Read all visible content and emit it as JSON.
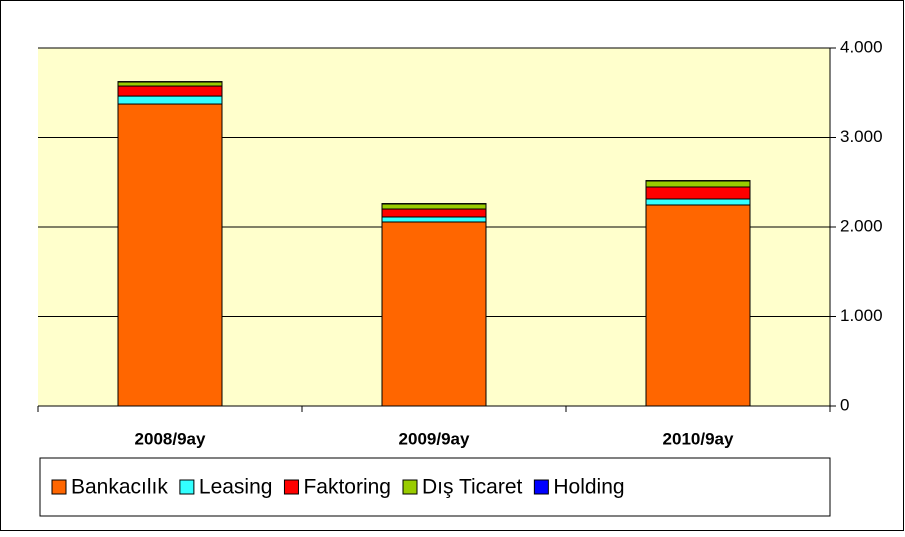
{
  "chart_data": {
    "type": "stacked_bar",
    "categories": [
      "2008/9ay",
      "2009/9ay",
      "2010/9ay"
    ],
    "series": [
      {
        "name": "Bankacılık",
        "color": "#ff6600",
        "values": [
          3374,
          2056,
          2246
        ]
      },
      {
        "name": "Leasing",
        "color": "#33ffff",
        "values": [
          89,
          56,
          67
        ]
      },
      {
        "name": "Faktoring",
        "color": "#ff0000",
        "values": [
          112,
          89,
          134
        ]
      },
      {
        "name": "Dış Ticaret",
        "color": "#99cc00",
        "values": [
          45,
          56,
          67
        ]
      },
      {
        "name": "Holding",
        "color": "#0000ff",
        "values": [
          5,
          5,
          5
        ]
      }
    ],
    "ylim": [
      0,
      4000
    ],
    "yticks": [
      0,
      {
        "value": 1000,
        "label": "1.000"
      },
      {
        "value": 2000,
        "label": "2.000"
      },
      {
        "value": 3000,
        "label": "3.000"
      },
      {
        "value": 4000,
        "label": "4.000"
      }
    ],
    "y_axis_side": "right",
    "grid": true,
    "legend": "bottom",
    "plot_background": "#ffffcc"
  }
}
